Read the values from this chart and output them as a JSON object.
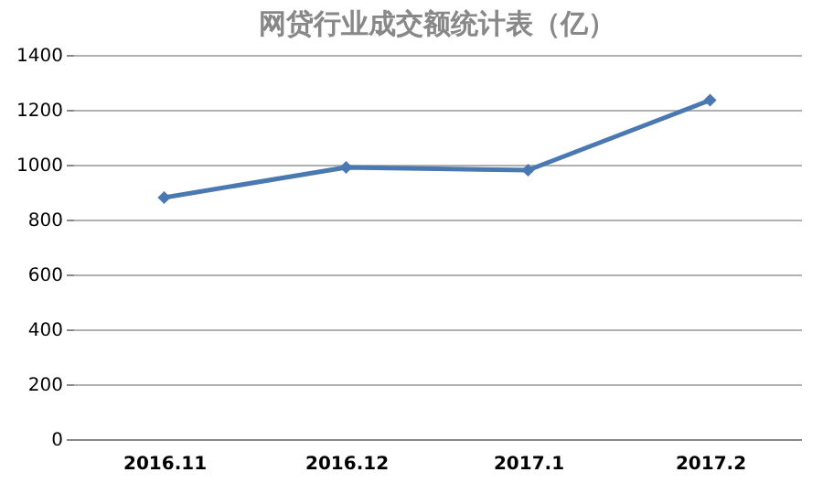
{
  "chart_data": {
    "type": "line",
    "title": "网贷行业成交额统计表（亿）",
    "categories": [
      "2016.11",
      "2016.12",
      "2017.1",
      "2017.2"
    ],
    "series": [
      {
        "color": "#4a78b0",
        "values": [
          880,
          990,
          980,
          1235
        ]
      }
    ],
    "ylim": [
      0,
      1400
    ],
    "yticks": [
      0,
      200,
      400,
      600,
      800,
      1000,
      1200,
      1400
    ],
    "grid": "y",
    "marker": "diamond",
    "line_style": "solid",
    "legend": false
  }
}
